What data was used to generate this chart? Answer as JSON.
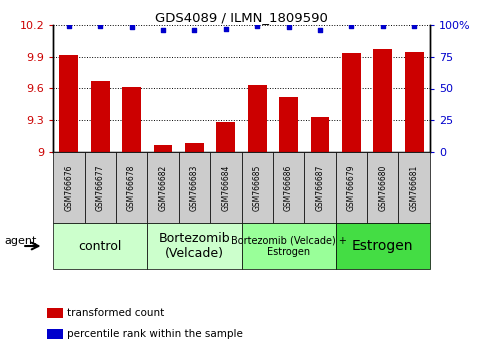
{
  "title": "GDS4089 / ILMN_1809590",
  "samples": [
    "GSM766676",
    "GSM766677",
    "GSM766678",
    "GSM766682",
    "GSM766683",
    "GSM766684",
    "GSM766685",
    "GSM766686",
    "GSM766687",
    "GSM766679",
    "GSM766680",
    "GSM766681"
  ],
  "bar_values": [
    9.92,
    9.67,
    9.61,
    9.07,
    9.09,
    9.28,
    9.63,
    9.52,
    9.33,
    9.93,
    9.97,
    9.94
  ],
  "percentile_values": [
    99,
    99,
    98,
    96,
    96,
    97,
    99,
    98,
    96,
    99,
    99,
    99
  ],
  "bar_color": "#cc0000",
  "dot_color": "#0000cc",
  "ylim_left": [
    9.0,
    10.2
  ],
  "ylim_right": [
    0,
    100
  ],
  "yticks_left": [
    9.0,
    9.3,
    9.6,
    9.9,
    10.2
  ],
  "yticks_right": [
    0,
    25,
    50,
    75,
    100
  ],
  "ytick_labels_left": [
    "9",
    "9.3",
    "9.6",
    "9.9",
    "10.2"
  ],
  "ytick_labels_right": [
    "0",
    "25",
    "50",
    "75",
    "100%"
  ],
  "group_labels": [
    "control",
    "Bortezomib\n(Velcade)",
    "Bortezomib (Velcade) +\nEstrogen",
    "Estrogen"
  ],
  "group_starts": [
    0,
    3,
    6,
    9
  ],
  "group_ends": [
    3,
    6,
    9,
    12
  ],
  "group_colors": [
    "#ccffcc",
    "#ccffcc",
    "#99ff99",
    "#44dd44"
  ],
  "group_label_fontsizes": [
    9,
    9,
    7,
    10
  ],
  "legend_labels": [
    "transformed count",
    "percentile rank within the sample"
  ],
  "legend_colors": [
    "#cc0000",
    "#0000cc"
  ],
  "agent_label": "agent",
  "bar_width": 0.6,
  "plot_bg": "#ffffff",
  "background_color": "#ffffff",
  "sample_box_color": "#cccccc"
}
